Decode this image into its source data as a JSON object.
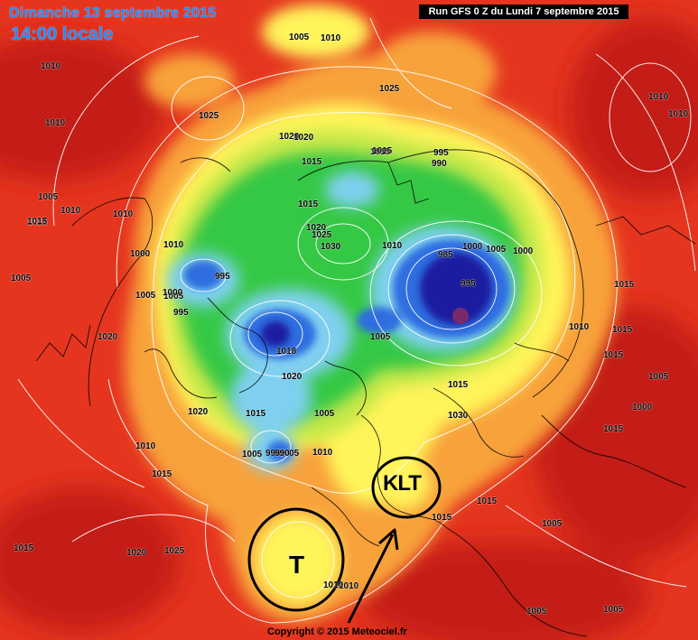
{
  "header": {
    "date": "Dimanche 13 septembre 2015",
    "local_time": "14:00 locale",
    "run_info": "Run GFS 0 Z du Lundi 7 septembre 2015"
  },
  "footer": {
    "copyright": "Copyright © 2015 Meteociel.fr"
  },
  "annotations": {
    "circle_label_1": "T",
    "circle_label_2": "KLT"
  },
  "colors": {
    "deep_blue": "#1d1fa0",
    "blue": "#2f6ee0",
    "light_blue": "#7fd0f0",
    "green": "#35c845",
    "yellow_green": "#c6e84a",
    "yellow": "#fff45a",
    "orange": "#f8a23a",
    "red": "#e5351f",
    "deep_red": "#c41c14",
    "isobar": "#ffffff",
    "coastline": "#000000"
  },
  "pressure_labels": [
    "1010",
    "1010",
    "1005",
    "1015",
    "1010",
    "1010",
    "1005",
    "1010",
    "1020",
    "1000",
    "995",
    "1010",
    "1005",
    "1000",
    "995",
    "1005",
    "1020",
    "1015",
    "1020",
    "1015",
    "1015",
    "1020",
    "1025",
    "1030",
    "1010",
    "1015",
    "990",
    "995",
    "990",
    "985",
    "1000",
    "1005",
    "1000",
    "995",
    "1018",
    "1005",
    "1020",
    "1015",
    "1010",
    "1005",
    "1005",
    "1010",
    "990",
    "1020",
    "1030",
    "1025",
    "1015",
    "1015",
    "1005",
    "1005",
    "1005",
    "1015",
    "1020",
    "1025",
    "1015",
    "1010",
    "1025",
    "1010",
    "1010",
    "1015",
    "1010",
    "1015",
    "1015",
    "1015",
    "1005",
    "1000",
    "1015",
    "1005",
    "1015",
    "1005",
    "1010"
  ]
}
